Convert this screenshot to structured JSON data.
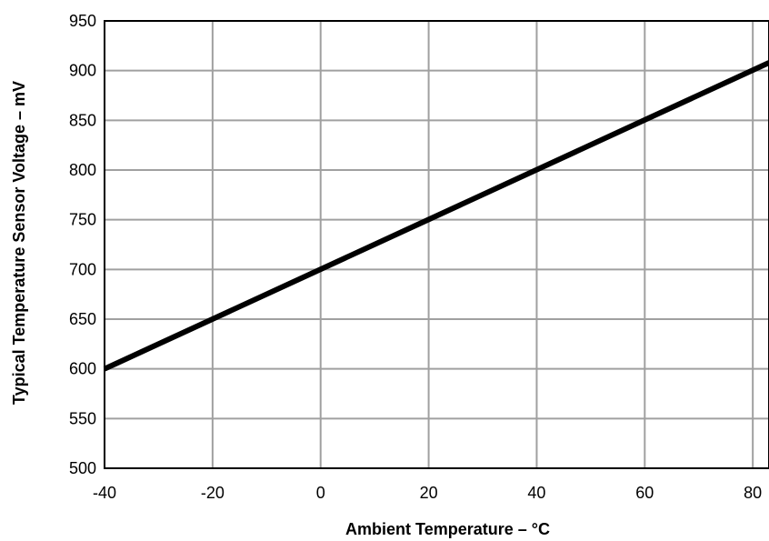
{
  "chart_data": {
    "type": "line",
    "title": "",
    "xlabel": "Ambient Temperature – °C",
    "ylabel": "Typical Temperature Sensor Voltage  – mV",
    "xlim": [
      -40,
      83
    ],
    "ylim": [
      500,
      950
    ],
    "x_ticks": [
      -40,
      -20,
      0,
      20,
      40,
      60,
      80
    ],
    "y_ticks": [
      500,
      550,
      600,
      650,
      700,
      750,
      800,
      850,
      900,
      950
    ],
    "grid": true,
    "legend": "none",
    "series": [
      {
        "x": [
          -40,
          83
        ],
        "y": [
          600,
          908
        ],
        "color": "#000000"
      }
    ]
  }
}
